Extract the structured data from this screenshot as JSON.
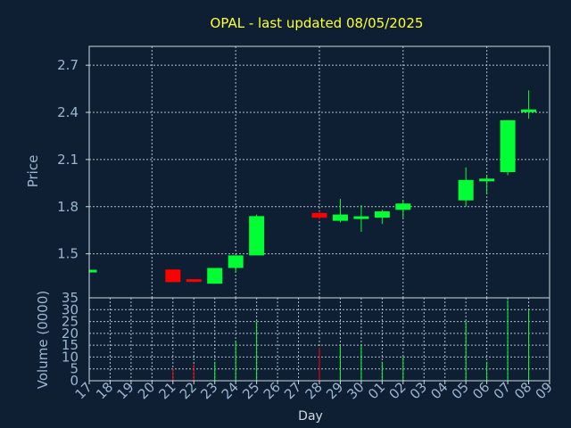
{
  "chart_data": {
    "type": "candlestick",
    "title": "OPAL - last updated 08/05/2025",
    "xlabel": "Day",
    "ylabel_price": "Price",
    "ylabel_volume": "Volume (0000)",
    "x_ticks": [
      "17",
      "18",
      "19",
      "20",
      "21",
      "22",
      "23",
      "24",
      "25",
      "26",
      "27",
      "28",
      "29",
      "30",
      "01",
      "02",
      "03",
      "04",
      "05",
      "06",
      "07",
      "08",
      "09"
    ],
    "price_ticks": [
      "1.5",
      "1.8",
      "2.1",
      "2.4",
      "2.7"
    ],
    "price_ylim": [
      1.22,
      2.82
    ],
    "volume_ticks": [
      "0",
      "5",
      "10",
      "15",
      "20",
      "25",
      "30",
      "35"
    ],
    "volume_ylim": [
      0,
      35
    ],
    "up_color": "#00ff33",
    "down_color": "#ff0000",
    "grid": true,
    "candles": [
      {
        "x": "17",
        "open": 1.39,
        "high": 1.39,
        "low": 1.39,
        "close": 1.39,
        "volume": 0
      },
      {
        "x": "21",
        "open": 1.4,
        "high": 1.4,
        "low": 1.32,
        "close": 1.32,
        "volume": 5
      },
      {
        "x": "22",
        "open": 1.33,
        "high": 1.33,
        "low": 1.32,
        "close": 1.32,
        "volume": 7
      },
      {
        "x": "23",
        "open": 1.31,
        "high": 1.41,
        "low": 1.31,
        "close": 1.41,
        "volume": 8
      },
      {
        "x": "24",
        "open": 1.41,
        "high": 1.49,
        "low": 1.38,
        "close": 1.49,
        "volume": 17
      },
      {
        "x": "25",
        "open": 1.49,
        "high": 1.75,
        "low": 1.49,
        "close": 1.74,
        "volume": 25
      },
      {
        "x": "28",
        "open": 1.76,
        "high": 1.77,
        "low": 1.72,
        "close": 1.73,
        "volume": 14
      },
      {
        "x": "29",
        "open": 1.71,
        "high": 1.85,
        "low": 1.7,
        "close": 1.75,
        "volume": 15
      },
      {
        "x": "30",
        "open": 1.72,
        "high": 1.81,
        "low": 1.64,
        "close": 1.73,
        "volume": 15
      },
      {
        "x": "01",
        "open": 1.73,
        "high": 1.78,
        "low": 1.69,
        "close": 1.77,
        "volume": 8
      },
      {
        "x": "02",
        "open": 1.78,
        "high": 1.84,
        "low": 1.73,
        "close": 1.82,
        "volume": 10
      },
      {
        "x": "05",
        "open": 1.84,
        "high": 2.05,
        "low": 1.8,
        "close": 1.97,
        "volume": 25
      },
      {
        "x": "06",
        "open": 1.97,
        "high": 2.0,
        "low": 1.88,
        "close": 1.97,
        "volume": 8
      },
      {
        "x": "07",
        "open": 2.02,
        "high": 2.35,
        "low": 2.0,
        "close": 2.35,
        "volume": 34
      },
      {
        "x": "08",
        "open": 2.4,
        "high": 2.54,
        "low": 2.36,
        "close": 2.41,
        "volume": 30
      }
    ]
  }
}
